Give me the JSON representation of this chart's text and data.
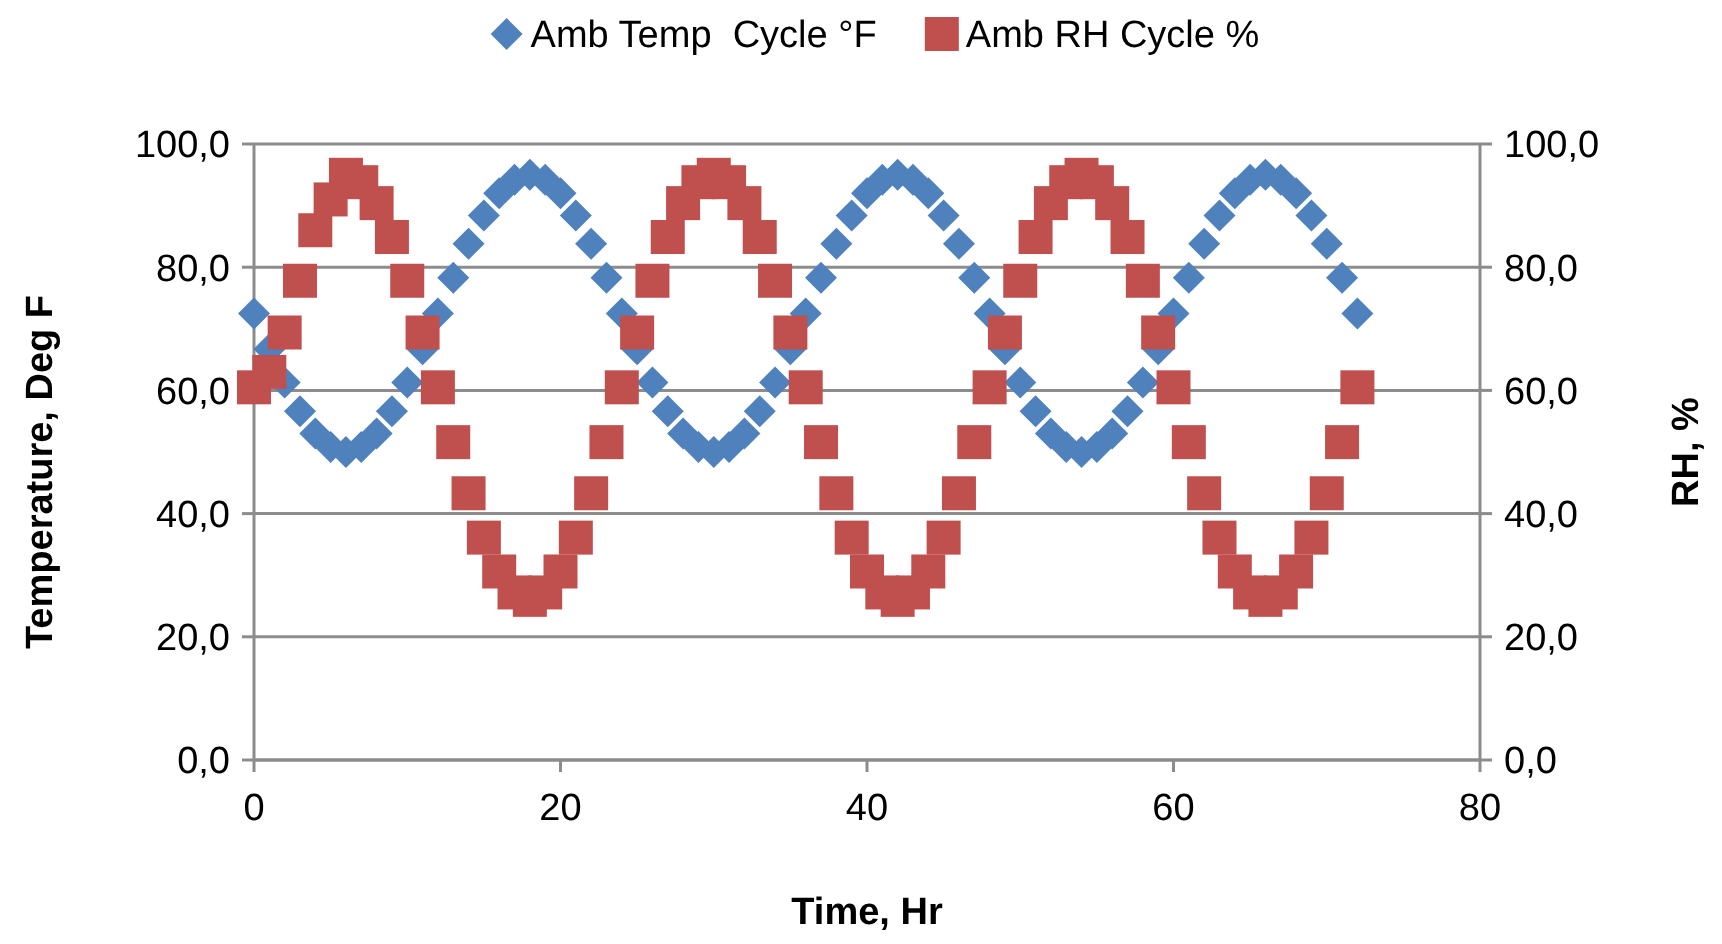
{
  "chart_data": {
    "type": "scatter",
    "xlabel": "Time, Hr",
    "ylabel": "Temperature, Deg F",
    "y2label": "RH, %",
    "x": [
      0,
      1,
      2,
      3,
      4,
      5,
      6,
      7,
      8,
      9,
      10,
      11,
      12,
      13,
      14,
      15,
      16,
      17,
      18,
      19,
      20,
      21,
      22,
      23,
      24,
      25,
      26,
      27,
      28,
      29,
      30,
      31,
      32,
      33,
      34,
      35,
      36,
      37,
      38,
      39,
      40,
      41,
      42,
      43,
      44,
      45,
      46,
      47,
      48,
      49,
      50,
      51,
      52,
      53,
      54,
      55,
      56,
      57,
      58,
      59,
      60,
      61,
      62,
      63,
      64,
      65,
      66,
      67,
      68,
      69,
      70,
      71,
      72
    ],
    "series": [
      {
        "name": "Amb Temp  Cycle °F",
        "color": "#4f81bd",
        "marker": "diamond",
        "values": [
          72.5,
          66.7,
          61.3,
          56.6,
          53.0,
          50.8,
          50.0,
          50.8,
          53.0,
          56.6,
          61.3,
          66.7,
          72.5,
          78.3,
          83.8,
          88.4,
          92.0,
          94.2,
          95.0,
          94.2,
          92.0,
          88.4,
          83.8,
          78.3,
          72.5,
          66.7,
          61.3,
          56.6,
          53.0,
          50.8,
          50.0,
          50.8,
          53.0,
          56.6,
          61.3,
          66.7,
          72.5,
          78.3,
          83.8,
          88.4,
          92.0,
          94.2,
          95.0,
          94.2,
          92.0,
          88.4,
          83.8,
          78.3,
          72.5,
          66.7,
          61.3,
          56.6,
          53.0,
          50.8,
          50.0,
          50.8,
          53.0,
          56.6,
          61.3,
          66.7,
          72.5,
          78.3,
          83.8,
          88.4,
          92.0,
          94.2,
          95.0,
          94.2,
          92.0,
          88.4,
          83.8,
          78.3,
          72.5
        ]
      },
      {
        "name": "Amb RH Cycle %",
        "color": "#c0504d",
        "marker": "square",
        "axis": "y2",
        "values": [
          60.5,
          63.0,
          69.4,
          77.8,
          86.0,
          91.0,
          95.0,
          93.8,
          90.4,
          84.9,
          77.8,
          69.4,
          60.5,
          51.6,
          43.3,
          36.1,
          30.6,
          27.2,
          26.0,
          27.2,
          30.6,
          36.1,
          43.3,
          51.6,
          60.5,
          69.4,
          77.8,
          84.9,
          90.4,
          93.8,
          95.0,
          93.8,
          90.4,
          84.9,
          77.8,
          69.4,
          60.5,
          51.6,
          43.3,
          36.1,
          30.6,
          27.2,
          26.0,
          27.2,
          30.6,
          36.1,
          43.3,
          51.6,
          60.5,
          69.4,
          77.8,
          84.9,
          90.4,
          93.8,
          95.0,
          93.8,
          90.4,
          84.9,
          77.8,
          69.4,
          60.5,
          51.6,
          43.3,
          36.1,
          30.6,
          27.2,
          26.0,
          27.2,
          30.6,
          36.1,
          43.3,
          51.6,
          60.5
        ]
      }
    ],
    "xlim": [
      0,
      80
    ],
    "xticks": [
      0,
      20,
      40,
      60,
      80
    ],
    "ylim": [
      0,
      100
    ],
    "yticks": [
      {
        "value": 0,
        "label": "0,0"
      },
      {
        "value": 20,
        "label": "20,0"
      },
      {
        "value": 40,
        "label": "40,0"
      },
      {
        "value": 60,
        "label": "60,0"
      },
      {
        "value": 80,
        "label": "80,0"
      },
      {
        "value": 100,
        "label": "100,0"
      }
    ],
    "y2lim": [
      0,
      100
    ],
    "y2ticks": [
      {
        "value": 0,
        "label": "0,0"
      },
      {
        "value": 20,
        "label": "20,0"
      },
      {
        "value": 40,
        "label": "40,0"
      },
      {
        "value": 60,
        "label": "60,0"
      },
      {
        "value": 80,
        "label": "80,0"
      },
      {
        "value": 100,
        "label": "100,0"
      }
    ],
    "grid": "y",
    "legend": "top"
  }
}
